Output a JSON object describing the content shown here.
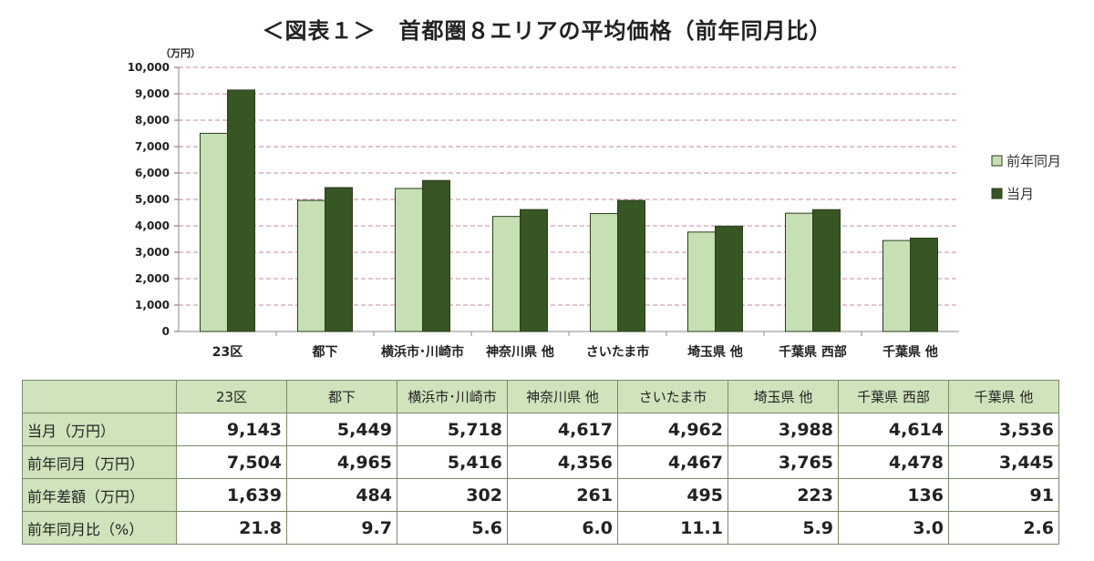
{
  "page": {
    "title": "＜図表１＞　首都圏８エリアの平均価格（前年同月比）"
  },
  "chart_data": {
    "type": "bar",
    "title": "＜図表１＞　首都圏８エリアの平均価格（前年同月比）",
    "unit_label": "（万円）",
    "categories": [
      "23区",
      "都下",
      "横浜市･川崎市",
      "神奈川県 他",
      "さいたま市",
      "埼玉県 他",
      "千葉県 西部",
      "千葉県 他"
    ],
    "series": [
      {
        "name": "前年同月",
        "color": "#c6e0b4",
        "values": [
          7504,
          4965,
          5416,
          4356,
          4467,
          3765,
          4478,
          3445
        ]
      },
      {
        "name": "当月",
        "color": "#375623",
        "values": [
          9143,
          5449,
          5718,
          4617,
          4962,
          3988,
          4614,
          3536
        ]
      }
    ],
    "ylim": [
      0,
      10000
    ],
    "yticks": [
      "0",
      "1,000",
      "2,000",
      "3,000",
      "4,000",
      "5,000",
      "6,000",
      "7,000",
      "8,000",
      "9,000",
      "10,000"
    ],
    "grid": true,
    "legend": "right"
  },
  "table": {
    "header": [
      "",
      "23区",
      "都下",
      "横浜市･川崎市",
      "神奈川県 他",
      "さいたま市",
      "埼玉県 他",
      "千葉県 西部",
      "千葉県 他"
    ],
    "rows": [
      {
        "label": "当月（万円）",
        "values": [
          "9,143",
          "5,449",
          "5,718",
          "4,617",
          "4,962",
          "3,988",
          "4,614",
          "3,536"
        ]
      },
      {
        "label": "前年同月（万円）",
        "values": [
          "7,504",
          "4,965",
          "5,416",
          "4,356",
          "4,467",
          "3,765",
          "4,478",
          "3,445"
        ]
      },
      {
        "label": "前年差額（万円）",
        "values": [
          "1,639",
          "484",
          "302",
          "261",
          "495",
          "223",
          "136",
          "91"
        ]
      },
      {
        "label": "前年同月比（%）",
        "values": [
          "21.8",
          "9.7",
          "5.6",
          "6.0",
          "11.1",
          "5.9",
          "3.0",
          "2.6"
        ]
      }
    ]
  }
}
